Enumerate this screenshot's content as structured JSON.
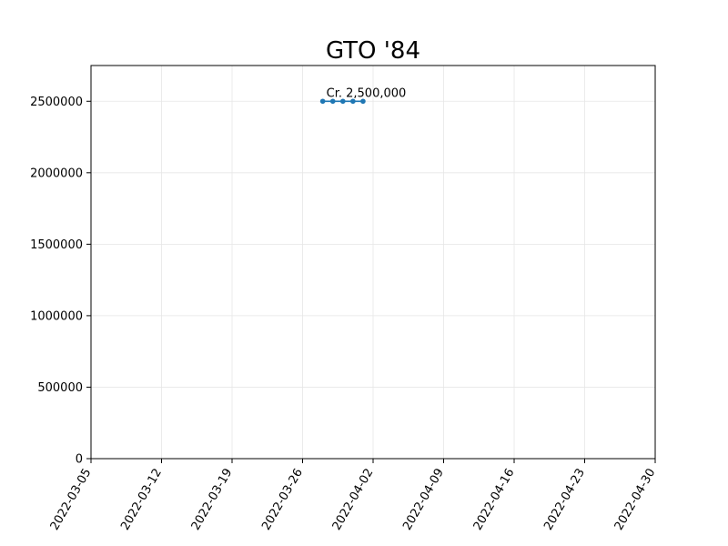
{
  "chart_data": {
    "type": "line",
    "title": "GTO '84",
    "xlabel": "",
    "ylabel": "",
    "x_axis_type": "date",
    "xlim": [
      "2022-03-05",
      "2022-04-30"
    ],
    "ylim": [
      0,
      2750000
    ],
    "grid": true,
    "x_ticks": [
      "2022-03-05",
      "2022-03-12",
      "2022-03-19",
      "2022-03-26",
      "2022-04-02",
      "2022-04-09",
      "2022-04-16",
      "2022-04-23",
      "2022-04-30"
    ],
    "y_ticks": [
      0,
      500000,
      1000000,
      1500000,
      2000000,
      2500000
    ],
    "y_tick_labels": [
      "0",
      "500000",
      "1000000",
      "1500000",
      "2000000",
      "2500000"
    ],
    "series": [
      {
        "color": "#1f77b4",
        "marker": "circle",
        "points": [
          {
            "x": "2022-03-28",
            "y": 2500000
          },
          {
            "x": "2022-03-29",
            "y": 2500000
          },
          {
            "x": "2022-03-30",
            "y": 2500000
          },
          {
            "x": "2022-03-31",
            "y": 2500000
          },
          {
            "x": "2022-04-01",
            "y": 2500000
          }
        ]
      }
    ],
    "annotations": [
      {
        "text": "Cr. 2,500,000",
        "x": "2022-03-28",
        "y": 2500000
      }
    ]
  }
}
